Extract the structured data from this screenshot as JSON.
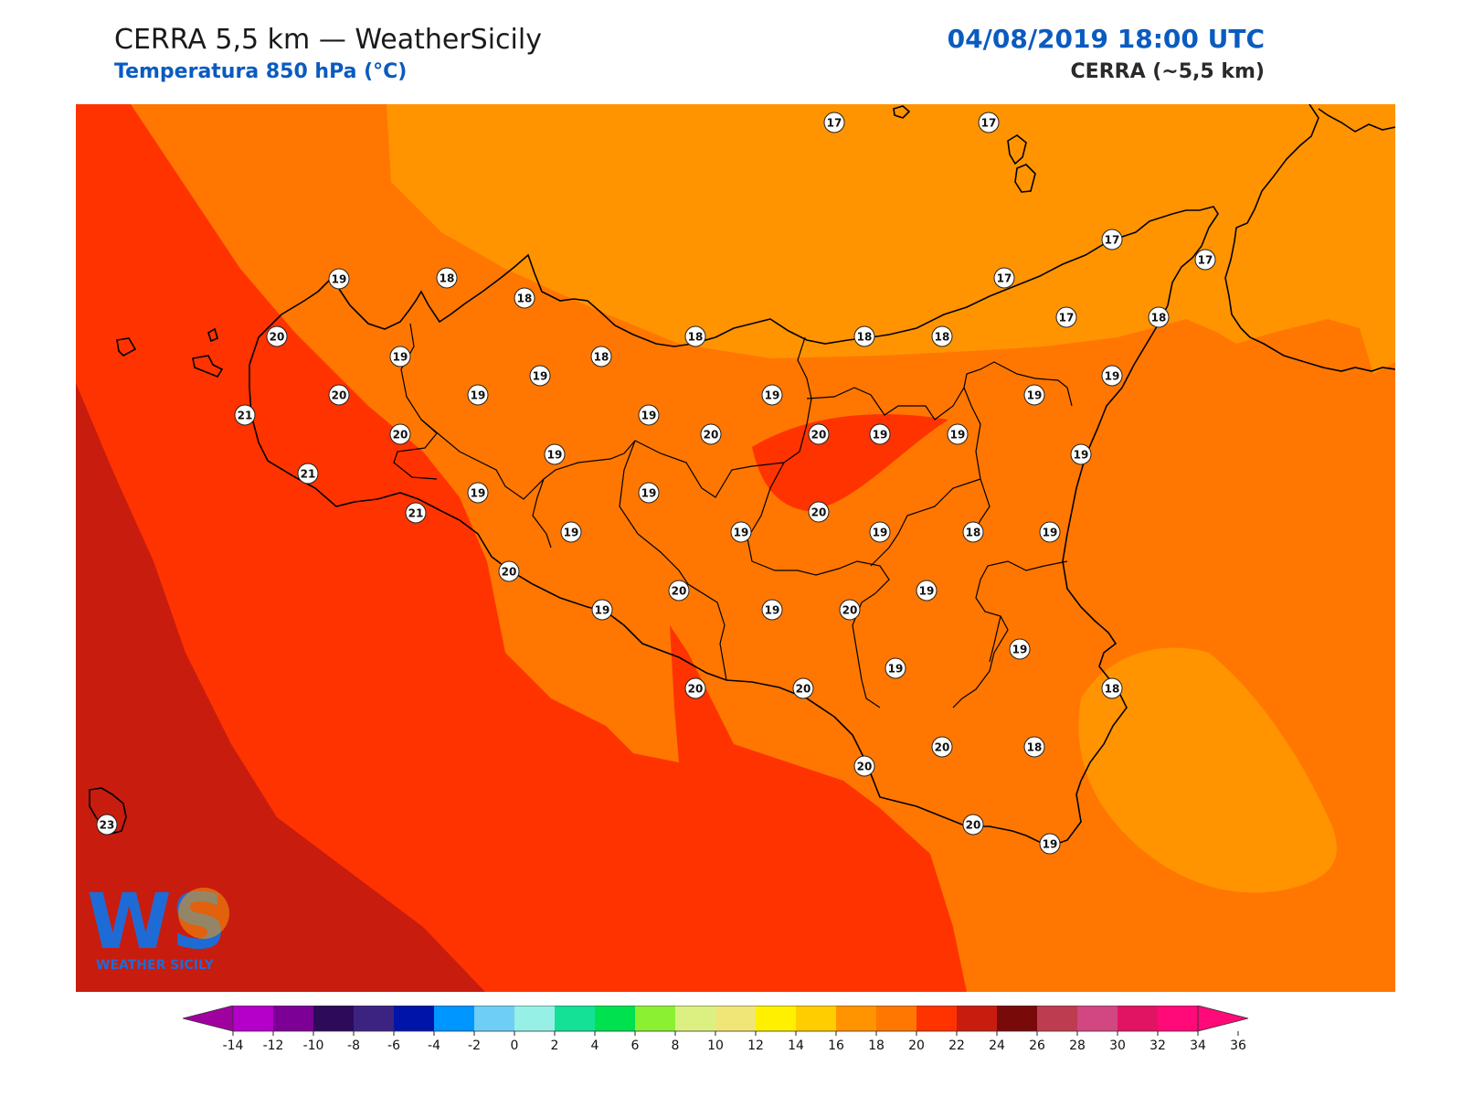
{
  "header": {
    "title": "CERRA 5,5 km — WeatherSicily",
    "subtitle": "Temperatura 850 hPa (°C)",
    "datetime": "04/08/2019 18:00 UTC",
    "model": "CERRA (~5,5 km)"
  },
  "logo": {
    "mark": "WS",
    "text": "WEATHER SICILY"
  },
  "colors": {
    "t23": "#c81c0e",
    "t22": "#ff3300",
    "t20": "#ff7700",
    "t18": "#ff9400",
    "land_border": "#000000"
  },
  "stations": [
    {
      "v": "17"
    },
    {
      "v": "17"
    },
    {
      "v": "17"
    },
    {
      "v": "17"
    },
    {
      "v": "17"
    },
    {
      "v": "17"
    },
    {
      "v": "19"
    },
    {
      "v": "18"
    },
    {
      "v": "18"
    },
    {
      "v": "20"
    },
    {
      "v": "19"
    },
    {
      "v": "18"
    },
    {
      "v": "18"
    },
    {
      "v": "18"
    },
    {
      "v": "18"
    },
    {
      "v": "18"
    },
    {
      "v": "19"
    },
    {
      "v": "21"
    },
    {
      "v": "20"
    },
    {
      "v": "19"
    },
    {
      "v": "19"
    },
    {
      "v": "19"
    },
    {
      "v": "19"
    },
    {
      "v": "19"
    },
    {
      "v": "20"
    },
    {
      "v": "20"
    },
    {
      "v": "20"
    },
    {
      "v": "19"
    },
    {
      "v": "21"
    },
    {
      "v": "19"
    },
    {
      "v": "19"
    },
    {
      "v": "19"
    },
    {
      "v": "21"
    },
    {
      "v": "19"
    },
    {
      "v": "19"
    },
    {
      "v": "19"
    },
    {
      "v": "20"
    },
    {
      "v": "19"
    },
    {
      "v": "18"
    },
    {
      "v": "19"
    },
    {
      "v": "20"
    },
    {
      "v": "20"
    },
    {
      "v": "19"
    },
    {
      "v": "19"
    },
    {
      "v": "20"
    },
    {
      "v": "19"
    },
    {
      "v": "19"
    },
    {
      "v": "19"
    },
    {
      "v": "19"
    },
    {
      "v": "20"
    },
    {
      "v": "20"
    },
    {
      "v": "18"
    },
    {
      "v": "20"
    },
    {
      "v": "20"
    },
    {
      "v": "18"
    },
    {
      "v": "20"
    },
    {
      "v": "19"
    },
    {
      "v": "23"
    }
  ],
  "colorbar": {
    "colors": [
      "#b400c8",
      "#7d0096",
      "#2d0a5a",
      "#3c2382",
      "#0014aa",
      "#0096ff",
      "#6ecef5",
      "#96f0e6",
      "#14e196",
      "#00e150",
      "#8cf032",
      "#dcf082",
      "#f0e678",
      "#fff000",
      "#ffcd00",
      "#ff9400",
      "#ff7700",
      "#ff3300",
      "#c81c0e",
      "#780a0a",
      "#be3c50",
      "#d24682",
      "#e11464",
      "#ff0a78"
    ],
    "low_color": "#a000a0",
    "high_color": "#ff0a78",
    "ticks": [
      "-14",
      "-12",
      "-10",
      "-8",
      "-6",
      "-4",
      "-2",
      "0",
      "2",
      "4",
      "6",
      "8",
      "10",
      "12",
      "14",
      "16",
      "18",
      "20",
      "22",
      "24",
      "26",
      "28",
      "30",
      "32",
      "34",
      "36"
    ]
  }
}
